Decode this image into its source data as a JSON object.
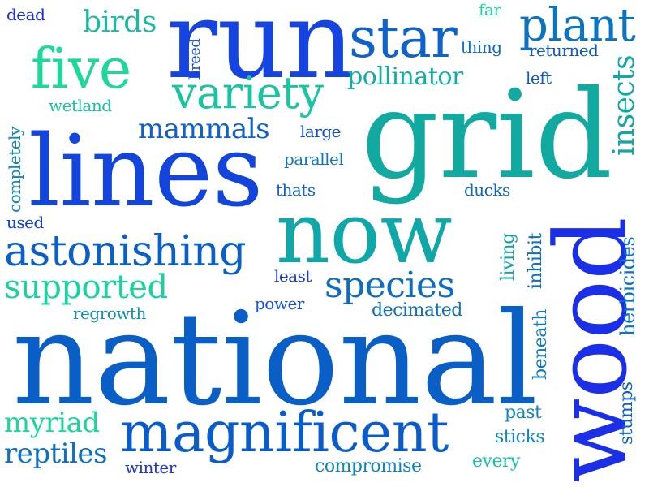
{
  "word_cloud": {
    "words": [
      {
        "text": "run",
        "color": "#1544e0"
      },
      {
        "text": "grid",
        "color": "#11a9a0"
      },
      {
        "text": "national",
        "color": "#0a5fc7"
      },
      {
        "text": "lines",
        "color": "#1345dd"
      },
      {
        "text": "now",
        "color": "#10a7a8"
      },
      {
        "text": "wood",
        "color": "#1c2fe8"
      },
      {
        "text": "magnificent",
        "color": "#0b5ccb"
      },
      {
        "text": "five",
        "color": "#1bd99a"
      },
      {
        "text": "star",
        "color": "#0d63c9"
      },
      {
        "text": "plant",
        "color": "#0b74c1"
      },
      {
        "text": "variety",
        "color": "#19c5a1"
      },
      {
        "text": "astonishing",
        "color": "#0b60c7"
      },
      {
        "text": "species",
        "color": "#0d6dc5"
      },
      {
        "text": "supported",
        "color": "#17d3a0"
      },
      {
        "text": "mammals",
        "color": "#0d63c9"
      },
      {
        "text": "pollinator",
        "color": "#12ae9f"
      },
      {
        "text": "insects",
        "color": "#10a8a5"
      },
      {
        "text": "birds",
        "color": "#19b9a2"
      },
      {
        "text": "myriad",
        "color": "#1bd59e"
      },
      {
        "text": "reptiles",
        "color": "#0c70c3"
      },
      {
        "text": "herbicides",
        "color": "#0c73c1"
      },
      {
        "text": "completely",
        "color": "#0d88b9"
      },
      {
        "text": "wetland",
        "color": "#14c3a2"
      },
      {
        "text": "decimated",
        "color": "#0d70c4"
      },
      {
        "text": "compromise",
        "color": "#0d86bb"
      },
      {
        "text": "regrowth",
        "color": "#0f90b5"
      },
      {
        "text": "parallel",
        "color": "#0d7bc0"
      },
      {
        "text": "living",
        "color": "#11a5ad"
      },
      {
        "text": "inhibit",
        "color": "#0b70c4"
      },
      {
        "text": "beneath",
        "color": "#0d7bbf"
      },
      {
        "text": "stumps",
        "color": "#0a61c9"
      },
      {
        "text": "sticks",
        "color": "#0e85bb"
      },
      {
        "text": "every",
        "color": "#15c2a3"
      },
      {
        "text": "past",
        "color": "#0d85bb"
      },
      {
        "text": "winter",
        "color": "#1a34e4"
      },
      {
        "text": "power",
        "color": "#1550de"
      },
      {
        "text": "least",
        "color": "#1a36e3"
      },
      {
        "text": "thats",
        "color": "#1160d2"
      },
      {
        "text": "ducks",
        "color": "#0c68c6"
      },
      {
        "text": "large",
        "color": "#0e4dcf"
      },
      {
        "text": "used",
        "color": "#0c3fdc"
      },
      {
        "text": "breed",
        "color": "#1548de"
      },
      {
        "text": "thing",
        "color": "#0d6bc6"
      },
      {
        "text": "returned",
        "color": "#0a5bc9"
      },
      {
        "text": "left",
        "color": "#0a5bc9"
      },
      {
        "text": "dead",
        "color": "#1b2ce6"
      },
      {
        "text": "far",
        "color": "#1bd6a0"
      }
    ]
  }
}
